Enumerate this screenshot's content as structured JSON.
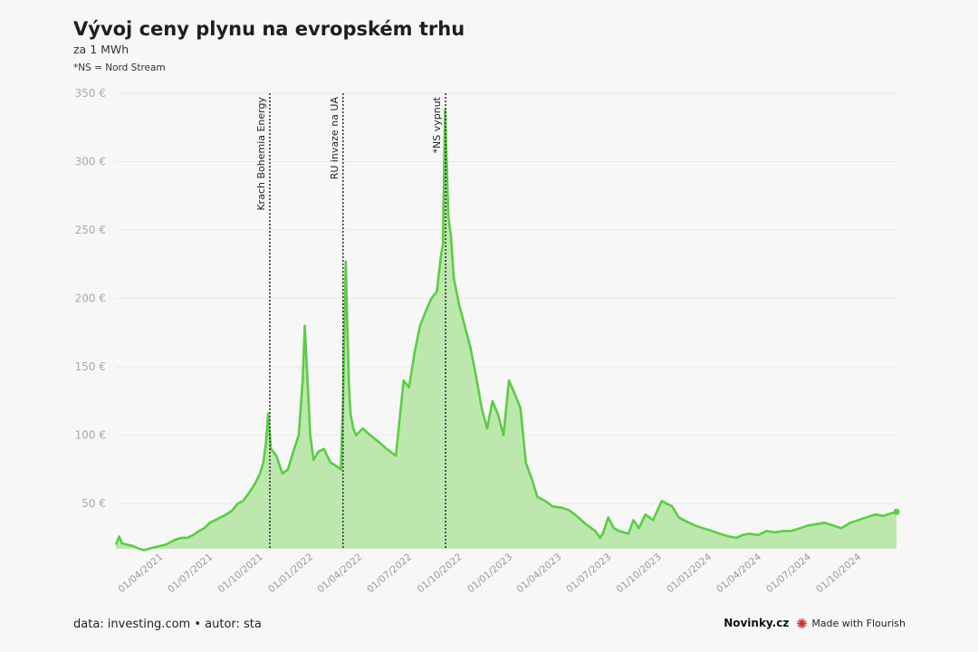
{
  "header": {
    "title": "Vývoj ceny plynu na evropském trhu",
    "subtitle": "za 1 MWh",
    "note": "*NS = Nord Stream"
  },
  "footer": {
    "source": "data: investing.com • autor: sta",
    "brand": "Novinky.cz",
    "made_with": "Made with Flourish"
  },
  "colors": {
    "line": "#5dcc46",
    "area": "#bce8ae",
    "grid": "#e8e8e8",
    "annotation": "#333333",
    "flourish_icon": "#d0312d"
  },
  "chart_data": {
    "type": "area",
    "title": "Vývoj ceny plynu na evropském trhu",
    "subtitle": "za 1 MWh",
    "xlabel": "",
    "ylabel": "",
    "ylim": [
      17,
      350
    ],
    "xlim": [
      "2021-01-04",
      "2024-12-04"
    ],
    "grid": "horizontal",
    "y_ticks": [
      {
        "value": 50,
        "label": "50 €"
      },
      {
        "value": 100,
        "label": "100 €"
      },
      {
        "value": 150,
        "label": "150 €"
      },
      {
        "value": 200,
        "label": "200 €"
      },
      {
        "value": 250,
        "label": "250 €"
      },
      {
        "value": 300,
        "label": "300 €"
      },
      {
        "value": 350,
        "label": "350 €"
      }
    ],
    "x_ticks": [
      {
        "date": "2021-04-01",
        "label": "01/04/2021"
      },
      {
        "date": "2021-07-01",
        "label": "01/07/2021"
      },
      {
        "date": "2021-10-01",
        "label": "01/10/2021"
      },
      {
        "date": "2022-01-01",
        "label": "01/01/2022"
      },
      {
        "date": "2022-04-01",
        "label": "01/04/2022"
      },
      {
        "date": "2022-07-01",
        "label": "01/07/2022"
      },
      {
        "date": "2022-10-01",
        "label": "01/10/2022"
      },
      {
        "date": "2023-01-01",
        "label": "01/01/2023"
      },
      {
        "date": "2023-04-01",
        "label": "01/04/2023"
      },
      {
        "date": "2023-07-01",
        "label": "01/07/2023"
      },
      {
        "date": "2023-10-01",
        "label": "01/10/2023"
      },
      {
        "date": "2024-01-01",
        "label": "01/01/2024"
      },
      {
        "date": "2024-04-01",
        "label": "01/04/2024"
      },
      {
        "date": "2024-07-01",
        "label": "01/07/2024"
      },
      {
        "date": "2024-10-01",
        "label": "01/10/2024"
      }
    ],
    "annotations": [
      {
        "date": "2021-10-13",
        "label": "Krach Bohemia Energy"
      },
      {
        "date": "2022-02-24",
        "label": "RU invaze na UA"
      },
      {
        "date": "2022-08-31",
        "label": "*NS vypnut"
      }
    ],
    "series": [
      {
        "dates": [
          "2021-01-04",
          "2021-01-10",
          "2021-01-15",
          "2021-01-25",
          "2021-02-05",
          "2021-02-15",
          "2021-02-25",
          "2021-03-05",
          "2021-03-15",
          "2021-03-25",
          "2021-04-05",
          "2021-04-15",
          "2021-04-25",
          "2021-05-05",
          "2021-05-15",
          "2021-05-25",
          "2021-06-05",
          "2021-06-15",
          "2021-06-25",
          "2021-07-05",
          "2021-07-15",
          "2021-07-25",
          "2021-08-05",
          "2021-08-15",
          "2021-08-25",
          "2021-09-05",
          "2021-09-15",
          "2021-09-25",
          "2021-10-01",
          "2021-10-06",
          "2021-10-10",
          "2021-10-15",
          "2021-10-25",
          "2021-11-05",
          "2021-11-15",
          "2021-11-25",
          "2021-12-05",
          "2021-12-12",
          "2021-12-16",
          "2021-12-21",
          "2021-12-26",
          "2022-01-01",
          "2022-01-10",
          "2022-01-20",
          "2022-02-01",
          "2022-02-10",
          "2022-02-20",
          "2022-02-24",
          "2022-03-01",
          "2022-03-04",
          "2022-03-07",
          "2022-03-10",
          "2022-03-15",
          "2022-03-20",
          "2022-04-01",
          "2022-04-15",
          "2022-05-01",
          "2022-05-15",
          "2022-06-01",
          "2022-06-15",
          "2022-06-25",
          "2022-07-05",
          "2022-07-15",
          "2022-07-25",
          "2022-08-05",
          "2022-08-15",
          "2022-08-22",
          "2022-08-26",
          "2022-08-30",
          "2022-09-05",
          "2022-09-10",
          "2022-09-15",
          "2022-09-25",
          "2022-10-05",
          "2022-10-15",
          "2022-10-25",
          "2022-11-05",
          "2022-11-15",
          "2022-11-25",
          "2022-12-05",
          "2022-12-15",
          "2022-12-25",
          "2023-01-05",
          "2023-01-15",
          "2023-01-25",
          "2023-02-05",
          "2023-02-15",
          "2023-03-01",
          "2023-03-15",
          "2023-04-01",
          "2023-04-15",
          "2023-05-01",
          "2023-05-15",
          "2023-06-01",
          "2023-06-10",
          "2023-06-15",
          "2023-06-25",
          "2023-07-05",
          "2023-07-15",
          "2023-08-01",
          "2023-08-10",
          "2023-08-20",
          "2023-09-01",
          "2023-09-15",
          "2023-10-01",
          "2023-10-10",
          "2023-10-20",
          "2023-11-01",
          "2023-11-15",
          "2023-12-01",
          "2023-12-15",
          "2024-01-01",
          "2024-01-15",
          "2024-02-01",
          "2024-02-15",
          "2024-02-25",
          "2024-03-10",
          "2024-03-25",
          "2024-04-10",
          "2024-04-25",
          "2024-05-10",
          "2024-05-25",
          "2024-06-10",
          "2024-06-25",
          "2024-07-10",
          "2024-07-25",
          "2024-08-10",
          "2024-08-25",
          "2024-09-10",
          "2024-09-25",
          "2024-10-10",
          "2024-10-25",
          "2024-11-10",
          "2024-11-25",
          "2024-12-04"
        ],
        "values": [
          20,
          26,
          21,
          20,
          19,
          17,
          16,
          17,
          18,
          19,
          20,
          22,
          24,
          25,
          25,
          27,
          30,
          32,
          36,
          38,
          40,
          42,
          45,
          50,
          52,
          58,
          64,
          72,
          80,
          95,
          116,
          90,
          85,
          72,
          75,
          88,
          100,
          140,
          180,
          140,
          100,
          82,
          88,
          90,
          80,
          78,
          75,
          125,
          227,
          180,
          135,
          115,
          105,
          100,
          105,
          100,
          95,
          90,
          85,
          140,
          135,
          160,
          180,
          190,
          200,
          205,
          230,
          240,
          338,
          260,
          245,
          215,
          195,
          180,
          165,
          145,
          120,
          105,
          125,
          115,
          100,
          140,
          130,
          120,
          80,
          68,
          55,
          52,
          48,
          47,
          45,
          40,
          35,
          30,
          25,
          28,
          40,
          32,
          30,
          28,
          38,
          32,
          42,
          38,
          52,
          50,
          48,
          40,
          37,
          34,
          32,
          30,
          28,
          26,
          25,
          27,
          28,
          27,
          30,
          29,
          30,
          30,
          32,
          34,
          35,
          36,
          34,
          32,
          36,
          38,
          40,
          42,
          41,
          43,
          44
        ]
      }
    ]
  }
}
